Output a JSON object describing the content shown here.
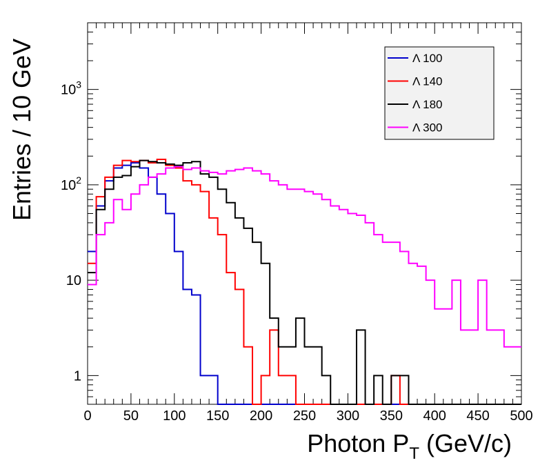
{
  "chart_data": {
    "type": "line",
    "title": "",
    "xlabel": "Photon P",
    "xlabel_sub": "T",
    "xlabel_unit": " (GeV/c)",
    "ylabel": "Entries / 10 GeV",
    "xlim": [
      0,
      500
    ],
    "ylim": [
      0.5,
      5000
    ],
    "yscale": "log",
    "x_ticks": [
      "0",
      "50",
      "100",
      "150",
      "200",
      "250",
      "300",
      "350",
      "400",
      "450",
      "500"
    ],
    "y_ticks": [
      {
        "value": 1,
        "base": "1",
        "exp": ""
      },
      {
        "value": 10,
        "base": "10",
        "exp": ""
      },
      {
        "value": 100,
        "base": "10",
        "exp": "2"
      },
      {
        "value": 1000,
        "base": "10",
        "exp": "3"
      }
    ],
    "grid": false,
    "legend_position": "top-right",
    "bin_width": 10,
    "series": [
      {
        "name": "Λ 100",
        "color": "#0000cc",
        "values": [
          20,
          60,
          110,
          150,
          160,
          170,
          150,
          120,
          80,
          50,
          20,
          8,
          7,
          1,
          1,
          0.4,
          0.4,
          0.4,
          0.4,
          0.4,
          0.4,
          0.4,
          0.4,
          0.4,
          0.4,
          0.4,
          0.4,
          0.4,
          0.4,
          0.4,
          0.4,
          0.4,
          0.4,
          0.4,
          0.4,
          0.4,
          0.4,
          0.4,
          0.4,
          0.4,
          0.4,
          0.4,
          0.4,
          0.4,
          0.4,
          0.4,
          0.4,
          0.4,
          0.4,
          0.4
        ]
      },
      {
        "name": "Λ 140",
        "color": "#ff0000",
        "values": [
          15,
          75,
          120,
          160,
          180,
          175,
          180,
          170,
          185,
          160,
          150,
          110,
          100,
          85,
          45,
          30,
          12,
          8,
          2,
          0.4,
          1,
          3,
          1,
          1,
          0.4,
          0.4,
          0.4,
          0.4,
          0.4,
          0.4,
          0.4,
          0.4,
          0.4,
          0.4,
          0.4,
          1,
          0.4,
          0.4,
          0.4,
          0.4,
          0.4,
          0.4,
          0.4,
          0.4,
          0.4,
          0.4,
          0.4,
          0.4,
          0.4,
          0.4
        ]
      },
      {
        "name": "Λ 180",
        "color": "#000000",
        "values": [
          12,
          55,
          90,
          120,
          125,
          155,
          180,
          175,
          170,
          165,
          160,
          170,
          175,
          130,
          120,
          90,
          65,
          45,
          35,
          25,
          15,
          4,
          2,
          2,
          4,
          2,
          2,
          1,
          0.4,
          0.4,
          0.4,
          3,
          0.4,
          1,
          0.4,
          1,
          1,
          0.4,
          0.4,
          0.4,
          0.4,
          0.4,
          0.4,
          0.4,
          0.4,
          0.4,
          0.4,
          0.4,
          0.4,
          0.4
        ]
      },
      {
        "name": "Λ 300",
        "color": "#ff00ff",
        "values": [
          9,
          30,
          40,
          70,
          55,
          80,
          100,
          120,
          130,
          150,
          155,
          145,
          150,
          140,
          135,
          130,
          140,
          145,
          150,
          140,
          130,
          110,
          100,
          90,
          90,
          85,
          80,
          70,
          60,
          55,
          50,
          48,
          40,
          30,
          25,
          25,
          20,
          15,
          14,
          10,
          5,
          5,
          10,
          3,
          3,
          10,
          3,
          3,
          2,
          2
        ]
      }
    ]
  }
}
